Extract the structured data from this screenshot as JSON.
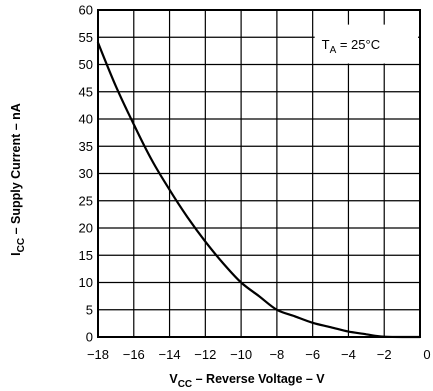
{
  "chart_data": {
    "type": "line",
    "xlabel_main": "V",
    "xlabel_sub": "CC",
    "xlabel_rest": " – Reverse Voltage – V",
    "ylabel_main": "I",
    "ylabel_sub": "CC",
    "ylabel_rest": "  – Supply Current – nA",
    "xlim": [
      -18,
      0
    ],
    "ylim": [
      0,
      60
    ],
    "x_ticks": [
      -18,
      -16,
      -14,
      -12,
      -10,
      -8,
      -6,
      -4,
      -2,
      0
    ],
    "x_tick_labels": [
      "−18",
      "−16",
      "−14",
      "−12",
      "−10",
      "−8",
      "−6",
      "−4",
      "−2",
      "0"
    ],
    "y_ticks": [
      0,
      5,
      10,
      15,
      20,
      25,
      30,
      35,
      40,
      45,
      50,
      55,
      60
    ],
    "y_tick_labels": [
      "0",
      "5",
      "10",
      "15",
      "20",
      "25",
      "30",
      "35",
      "40",
      "45",
      "50",
      "55",
      "60"
    ],
    "grid": true,
    "annotation": {
      "main": "T",
      "sub": "A",
      "rest": " = 25°C"
    },
    "series": [
      {
        "x": [
          -18,
          -17,
          -16,
          -15,
          -14,
          -13,
          -12,
          -11,
          -10,
          -9,
          -8,
          -7,
          -6,
          -5,
          -4,
          -3,
          -2.5,
          -2,
          -1,
          0
        ],
        "y": [
          54,
          46,
          39,
          32.5,
          27,
          22,
          17.5,
          13.5,
          10,
          7.5,
          5,
          3.8,
          2.6,
          1.8,
          1,
          0.5,
          0.2,
          0.05,
          0,
          0
        ]
      }
    ]
  }
}
